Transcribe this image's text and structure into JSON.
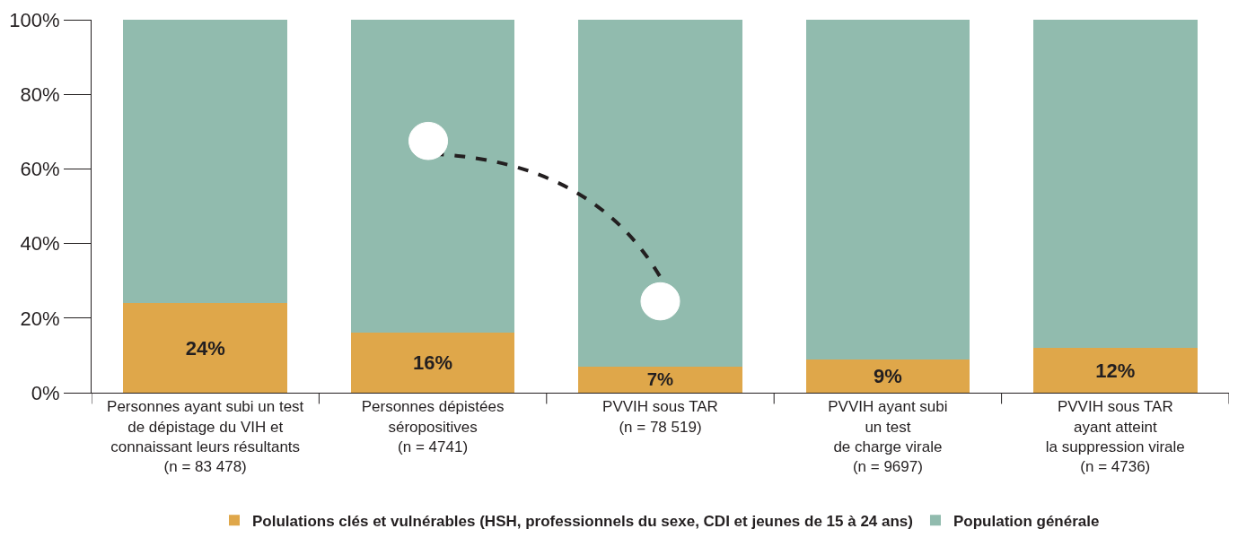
{
  "chart_data": {
    "type": "bar",
    "stacked": true,
    "categories": [
      "Personnes ayant subi un test\nde dépistage du VIH et\nconnaissant leurs résultants\n(n = 83 478)",
      "Personnes dépistées\nséropositives\n(n = 4741)",
      "PVVIH sous TAR\n(n = 78 519)\n\n",
      "PVVIH ayant subi\nun test\nde charge virale\n(n = 9697)",
      "PVVIH sous TAR\nayant atteint\nla suppression virale\n(n = 4736)"
    ],
    "series": [
      {
        "name": "Polulations clés et vulnérables (HSH, professionnels du sexe, CDI et jeunes de 15 à 24 ans)",
        "color": "#dfa74a",
        "values": [
          24,
          16,
          7,
          9,
          12
        ],
        "value_labels": [
          "24%",
          "16%",
          "7%",
          "9%",
          "12%"
        ]
      },
      {
        "name": "Population générale",
        "color": "#91bbae",
        "values": [
          76,
          84,
          93,
          91,
          88
        ]
      }
    ],
    "ylim": [
      0,
      100
    ],
    "yticks": [
      {
        "value": 0,
        "label": "0%"
      },
      {
        "value": 20,
        "label": "20%"
      },
      {
        "value": 40,
        "label": "40%"
      },
      {
        "value": 60,
        "label": "60%"
      },
      {
        "value": 80,
        "label": "80%"
      },
      {
        "value": 100,
        "label": "100%"
      }
    ],
    "legend": "bottom"
  }
}
